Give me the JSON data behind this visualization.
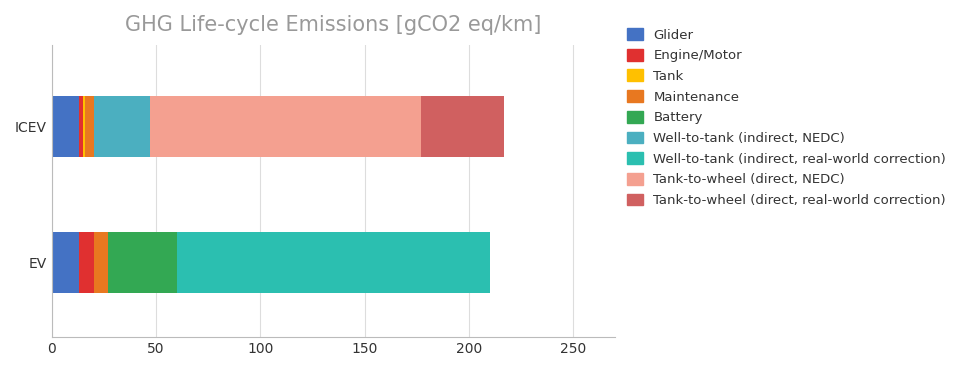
{
  "title": "GHG Life-cycle Emissions [gCO2 eq/km]",
  "categories": [
    "ICEV",
    "EV"
  ],
  "segments": [
    {
      "label": "Glider",
      "color": "#4472C4",
      "values": [
        13,
        13
      ]
    },
    {
      "label": "Engine/Motor",
      "color": "#E03030",
      "values": [
        2,
        7
      ]
    },
    {
      "label": "Tank",
      "color": "#FFC000",
      "values": [
        1,
        0
      ]
    },
    {
      "label": "Maintenance",
      "color": "#E87820",
      "values": [
        4,
        7
      ]
    },
    {
      "label": "Battery",
      "color": "#33A853",
      "values": [
        0,
        33
      ]
    },
    {
      "label": "Well-to-tank (indirect, NEDC)",
      "color": "#4BAFC0",
      "values": [
        27,
        0
      ]
    },
    {
      "label": "Well-to-tank (indirect, real-world correction)",
      "color": "#2BBFB0",
      "values": [
        0,
        150
      ]
    },
    {
      "label": "Tank-to-wheel (direct, NEDC)",
      "color": "#F4A090",
      "values": [
        130,
        0
      ]
    },
    {
      "label": "Tank-to-wheel (direct, real-world correction)",
      "color": "#D06060",
      "values": [
        40,
        0
      ]
    }
  ],
  "xlim": [
    0,
    270
  ],
  "xticks": [
    0,
    50,
    100,
    150,
    200,
    250
  ],
  "background_color": "#FFFFFF",
  "title_color": "#999999",
  "title_fontsize": 15,
  "bar_height": 0.45,
  "legend_fontsize": 9.5,
  "tick_label_fontsize": 10,
  "figsize": [
    9.63,
    3.71
  ],
  "dpi": 100
}
